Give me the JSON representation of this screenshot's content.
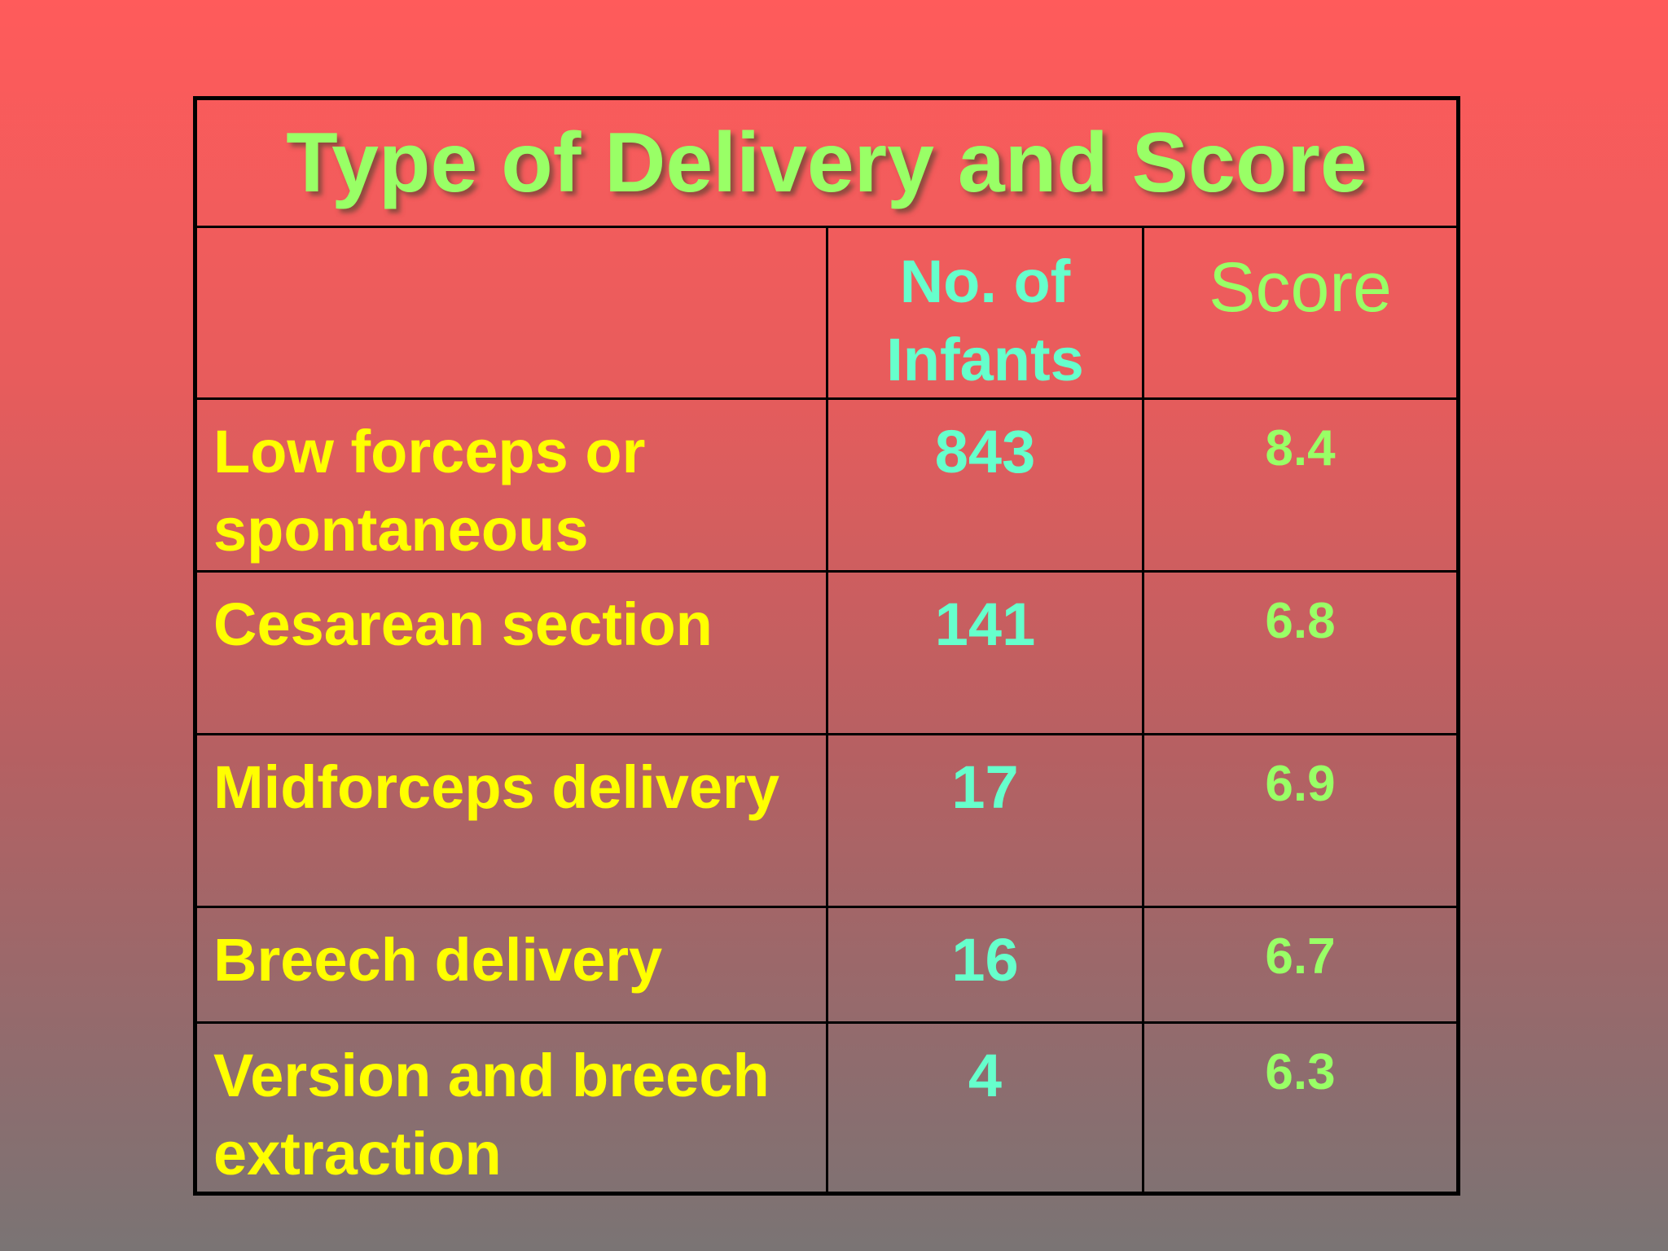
{
  "slide": {
    "title": "Type of Delivery and Score"
  },
  "table": {
    "headers": [
      "",
      "No. of Infants",
      "Score"
    ],
    "rows": [
      {
        "type": "Low forceps or spontaneous",
        "infants": "843",
        "score": "8.4"
      },
      {
        "type": "Cesarean section",
        "infants": "141",
        "score": "6.8"
      },
      {
        "type": "Midforceps delivery",
        "infants": "17",
        "score": "6.9"
      },
      {
        "type": "Breech delivery",
        "infants": "16",
        "score": "6.7"
      },
      {
        "type": "Version and breech extraction",
        "infants": "4",
        "score": "6.3"
      }
    ]
  },
  "colors": {
    "title": "#99ff66",
    "row_label": "#ffff00",
    "infants": "#66ffcc",
    "score": "#99ff66",
    "border": "#000000"
  }
}
